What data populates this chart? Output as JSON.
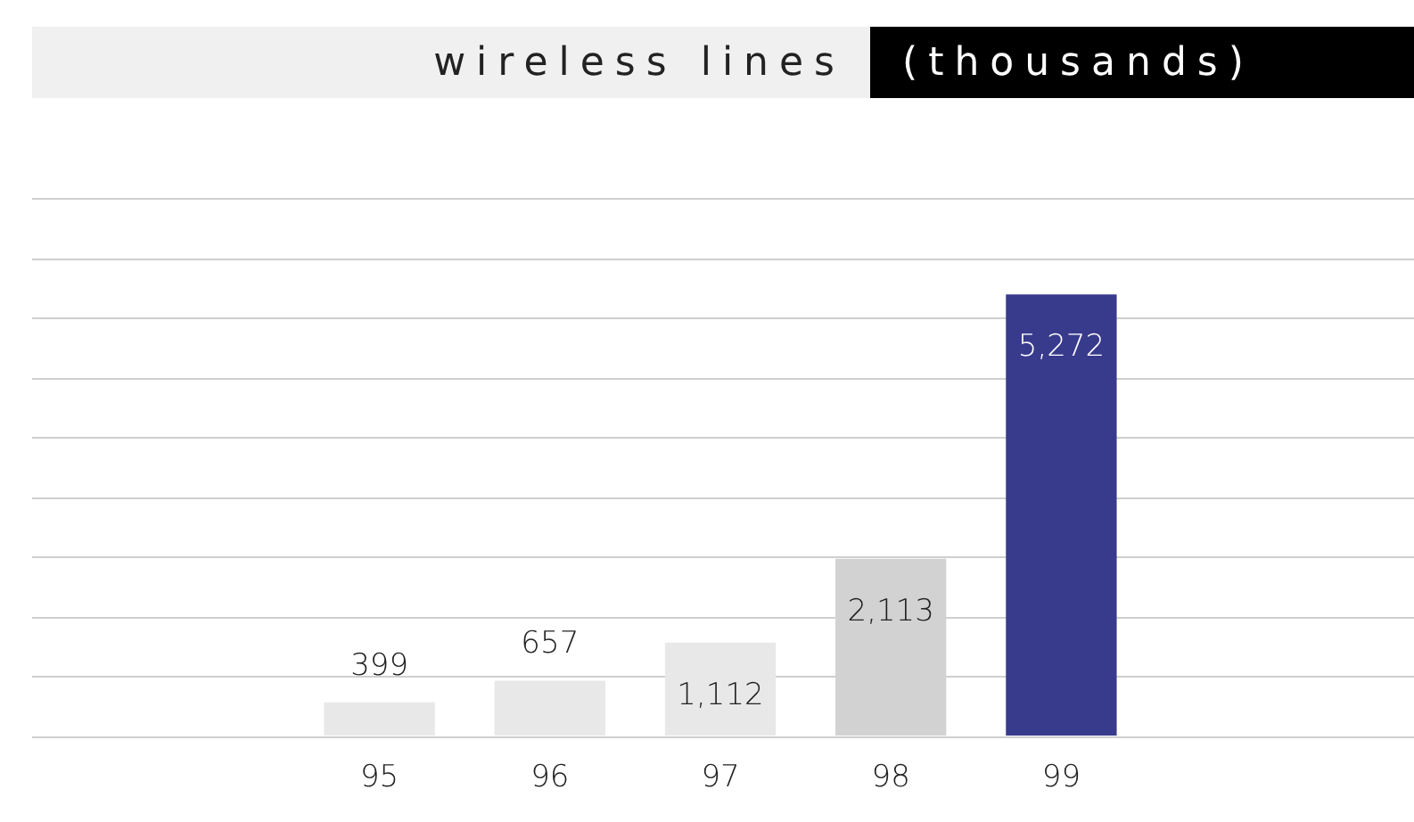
{
  "chart_data": {
    "type": "bar",
    "title": "wireless lines",
    "subtitle": "(thousands)",
    "categories": [
      "95",
      "96",
      "97",
      "98",
      "99"
    ],
    "values": [
      399,
      657,
      1112,
      2113,
      5272
    ],
    "colors": [
      "#e8e8e8",
      "#e8e8e8",
      "#e8e8e8",
      "#d2d2d2",
      "#383a8c"
    ],
    "data_labels": true,
    "value_labels": [
      "399",
      "657",
      "1,112",
      "2,113",
      "5,272"
    ],
    "ylim": [
      0,
      6426
    ],
    "yticks": [
      {
        "value": 0,
        "label": null
      },
      {
        "value": 714,
        "label": null
      },
      {
        "value": 1428,
        "label": null
      },
      {
        "value": 2142,
        "label": null
      },
      {
        "value": 2856,
        "label": null
      },
      {
        "value": 3570,
        "label": null
      },
      {
        "value": 4284,
        "label": null
      },
      {
        "value": 4998,
        "label": null
      },
      {
        "value": 5712,
        "label": null
      },
      {
        "value": 6426,
        "label": null
      }
    ],
    "grid": "y",
    "tick_labels": "x",
    "legend": false
  }
}
